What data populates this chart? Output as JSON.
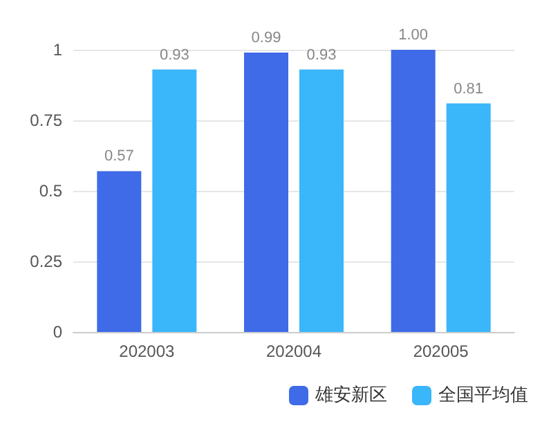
{
  "chart_data": {
    "type": "bar",
    "categories": [
      "202003",
      "202004",
      "202005"
    ],
    "series": [
      {
        "name": "雄安新区",
        "color": "#3f6ae8",
        "values": [
          0.57,
          0.99,
          1
        ],
        "value_labels": [
          "0.57",
          "0.99",
          "1.00"
        ]
      },
      {
        "name": "全国平均值",
        "color": "#3ab6fb",
        "values": [
          0.93,
          0.93,
          0.81
        ],
        "value_labels": [
          "0.93",
          "0.93",
          "0.81"
        ]
      }
    ],
    "ylim": [
      0,
      1
    ],
    "yticks": [
      0,
      0.25,
      0.5,
      0.75,
      1
    ],
    "grid": "y",
    "legend": "bottom right"
  }
}
